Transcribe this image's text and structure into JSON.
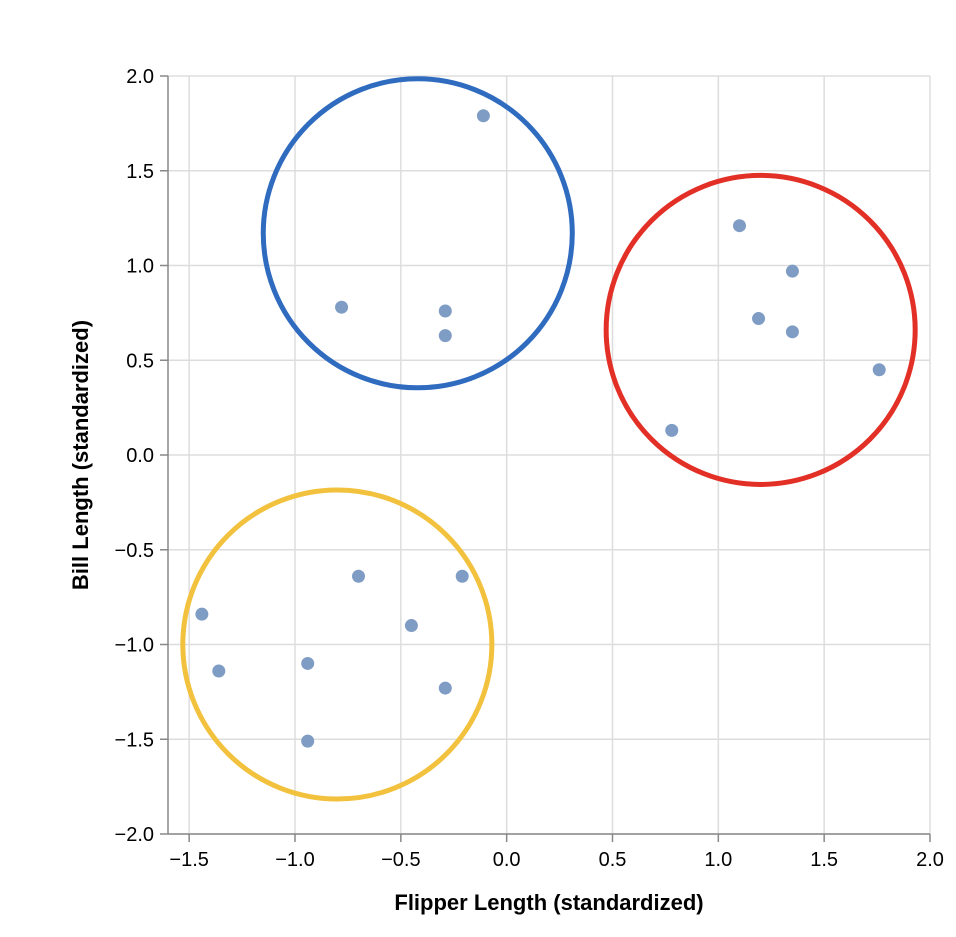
{
  "chart_data": {
    "type": "scatter",
    "xlabel": "Flipper Length (standardized)",
    "ylabel": "Bill Length (standardized)",
    "xlim": [
      -1.6,
      2.0
    ],
    "ylim": [
      -2.0,
      2.0
    ],
    "x_ticks": [
      -1.5,
      -1.0,
      -0.5,
      0.0,
      0.5,
      1.0,
      1.5,
      2.0
    ],
    "y_ticks": [
      -2.0,
      -1.5,
      -1.0,
      -0.5,
      0.0,
      0.5,
      1.0,
      1.5,
      2.0
    ],
    "x_tick_labels": [
      "−1.5",
      "−1.0",
      "−0.5",
      "0.0",
      "0.5",
      "1.0",
      "1.5",
      "2.0"
    ],
    "y_tick_labels": [
      "−2.0",
      "−1.5",
      "−1.0",
      "−0.5",
      "0.0",
      "0.5",
      "1.0",
      "1.5",
      "2.0"
    ],
    "grid": true,
    "point_color": "#7f9cc4",
    "points": [
      {
        "x": -0.11,
        "y": 1.79
      },
      {
        "x": -0.78,
        "y": 0.78
      },
      {
        "x": -0.29,
        "y": 0.76
      },
      {
        "x": -0.29,
        "y": 0.63
      },
      {
        "x": 1.1,
        "y": 1.21
      },
      {
        "x": 1.35,
        "y": 0.97
      },
      {
        "x": 1.19,
        "y": 0.72
      },
      {
        "x": 1.35,
        "y": 0.65
      },
      {
        "x": 1.76,
        "y": 0.45
      },
      {
        "x": 0.78,
        "y": 0.13
      },
      {
        "x": -1.44,
        "y": -0.84
      },
      {
        "x": -1.36,
        "y": -1.14
      },
      {
        "x": -0.94,
        "y": -1.1
      },
      {
        "x": -0.94,
        "y": -1.51
      },
      {
        "x": -0.7,
        "y": -0.64
      },
      {
        "x": -0.45,
        "y": -0.9
      },
      {
        "x": -0.21,
        "y": -0.64
      },
      {
        "x": -0.29,
        "y": -1.23
      }
    ],
    "cluster_circles": [
      {
        "name": "blue",
        "color": "#2f6bbf",
        "cx": -0.42,
        "cy": 1.17,
        "r": 0.73
      },
      {
        "name": "red",
        "color": "#e33027",
        "cx": 1.2,
        "cy": 0.66,
        "r": 0.73
      },
      {
        "name": "yellow",
        "color": "#f2c23e",
        "cx": -0.8,
        "cy": -1.0,
        "r": 0.73
      }
    ]
  }
}
